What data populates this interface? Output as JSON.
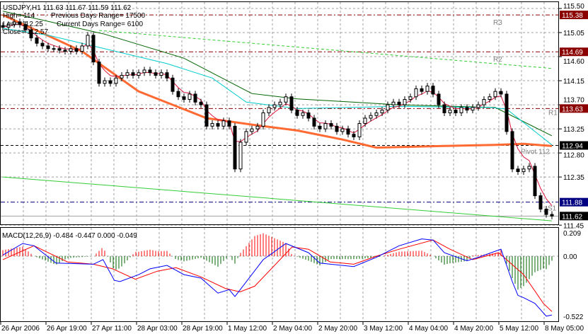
{
  "header": {
    "symbol_line": "USDJPY,H1  111.63 111.67 111.59 111.62",
    "high_line": "High= 114",
    "prev_range": "Previous Days Range= 17500",
    "low_line": "Low= 112.25",
    "cur_range": "Current Days Range= 6100",
    "close_line": "Close= 112.57"
  },
  "macd_label": "MACD(12,26,9) -0.484 -0.447 0.000 -0.049",
  "colors": {
    "bull_body": "#ffffff",
    "bear_body": "#000000",
    "fast_ma": "#dc143c",
    "cyan_ma": "#00cccc",
    "green_ma": "#006400",
    "orange_ma": "#ff6a33",
    "trend_dashed": "#32cd32",
    "trend_solid": "#32cd32",
    "resistance": "#8b0000",
    "pivot": "#000000",
    "support": "#000080",
    "macd": "#0000ff",
    "signal": "#ff0000",
    "hist_pos": "#ff0000",
    "hist_neg": "#006400",
    "grid": "#a0a0a0"
  },
  "chart_data": [
    {
      "type": "candlestick",
      "symbol": "USDJPY",
      "timeframe": "H1",
      "ylim": [
        111.45,
        115.5
      ],
      "y_ticks": [
        "115.50",
        "115.05",
        "114.60",
        "114.15",
        "113.70",
        "113.25",
        "112.80",
        "112.35",
        "111.45"
      ],
      "x_tick_labels": [
        "26 Apr 2006",
        "26 Apr 19:00",
        "27 Apr 11:00",
        "28 Apr 03:00",
        "28 Apr 19:00",
        "1 May 12:00",
        "2 May 04:00",
        "2 May 20:00",
        "3 May 12:00",
        "4 May 04:00",
        "4 May 20:00",
        "5 May 12:00",
        "8 May 05:00"
      ],
      "grid": true,
      "close": [
        115.15,
        115.2,
        115.25,
        115.2,
        115.1,
        114.95,
        114.85,
        114.8,
        114.75,
        114.75,
        114.72,
        114.7,
        114.75,
        114.7,
        114.8,
        115.0,
        114.5,
        114.1,
        114.15,
        114.1,
        114.2,
        114.25,
        114.3,
        114.25,
        114.3,
        114.35,
        114.3,
        114.25,
        114.3,
        114.2,
        113.95,
        113.85,
        113.8,
        113.9,
        113.75,
        113.7,
        113.3,
        113.35,
        113.3,
        113.4,
        113.3,
        112.5,
        113.0,
        113.2,
        113.25,
        113.3,
        113.55,
        113.65,
        113.7,
        113.75,
        113.85,
        113.6,
        113.5,
        113.55,
        113.45,
        113.3,
        113.25,
        113.35,
        113.3,
        113.2,
        113.25,
        113.15,
        113.1,
        113.35,
        113.45,
        113.5,
        113.55,
        113.6,
        113.7,
        113.75,
        113.7,
        113.8,
        113.85,
        114.0,
        113.95,
        114.05,
        113.9,
        113.7,
        113.55,
        113.6,
        113.55,
        113.65,
        113.6,
        113.65,
        113.7,
        113.8,
        113.85,
        113.95,
        113.9,
        113.2,
        112.5,
        112.45,
        112.5,
        112.55,
        112.0,
        111.75,
        111.65,
        111.62
      ],
      "moving_averages": {
        "cyan": [
          [
            0,
            115.13
          ],
          [
            8,
            115.0
          ],
          [
            29,
            114.47
          ],
          [
            37,
            114.2
          ],
          [
            43,
            113.75
          ],
          [
            52,
            113.63
          ],
          [
            70,
            113.67
          ],
          [
            86,
            113.65
          ],
          [
            89,
            113.62
          ],
          [
            97,
            112.95
          ]
        ],
        "green": [
          [
            0,
            115.45
          ],
          [
            18,
            115.02
          ],
          [
            32,
            114.57
          ],
          [
            44,
            113.91
          ],
          [
            52,
            113.81
          ],
          [
            70,
            113.7
          ],
          [
            87,
            113.65
          ],
          [
            97,
            113.12
          ]
        ],
        "orange": [
          [
            0,
            115.38
          ],
          [
            14,
            114.7
          ],
          [
            24,
            113.95
          ],
          [
            36,
            113.45
          ],
          [
            44,
            113.33
          ],
          [
            52,
            113.22
          ],
          [
            60,
            113.05
          ],
          [
            66,
            112.9
          ],
          [
            78,
            112.93
          ],
          [
            87,
            112.95
          ],
          [
            92,
            112.97
          ],
          [
            97,
            112.93
          ]
        ]
      },
      "trendlines": {
        "dashed": [
          [
            17,
            115.09
          ],
          [
            97,
            114.38
          ]
        ],
        "solid": [
          [
            0,
            112.35
          ],
          [
            97,
            111.53
          ]
        ]
      },
      "levels": [
        {
          "name": "R3",
          "value": "115.38",
          "kind": "resistance"
        },
        {
          "name": "R2",
          "value": "114.69",
          "kind": "resistance"
        },
        {
          "name": "R1",
          "value": "113.63",
          "kind": "resistance"
        },
        {
          "name": "Pivot  112",
          "value": "112.94",
          "kind": "pivot"
        },
        {
          "name": "S1",
          "value": "111.88",
          "kind": "support"
        },
        {
          "name": "",
          "value": "111.62",
          "kind": "current"
        }
      ]
    },
    {
      "type": "line",
      "title": "MACD(12,26,9) -0.484 -0.447 0.000 -0.049",
      "ylim": [
        -0.522,
        0.209
      ],
      "y_ticks": [
        "0.209",
        "0.00",
        "-0.522"
      ],
      "macd": [
        [
          0,
          0.01
        ],
        [
          3.5,
          0.11
        ],
        [
          5.5,
          0.09
        ],
        [
          9.4,
          -0.06
        ],
        [
          16,
          -0.07
        ],
        [
          17.7,
          -0.03
        ],
        [
          19.7,
          -0.21
        ],
        [
          20.7,
          -0.22
        ],
        [
          24,
          -0.16
        ],
        [
          26,
          -0.11
        ],
        [
          29,
          -0.08
        ],
        [
          32,
          -0.16
        ],
        [
          35,
          -0.19
        ],
        [
          38,
          -0.32
        ],
        [
          40,
          -0.29
        ],
        [
          41,
          -0.35
        ],
        [
          46,
          -0.03
        ],
        [
          50,
          0.11
        ],
        [
          54,
          0.03
        ],
        [
          56,
          -0.06
        ],
        [
          62,
          -0.09
        ],
        [
          66,
          -0.01
        ],
        [
          70,
          0.09
        ],
        [
          74,
          0.15
        ],
        [
          76,
          0.14
        ],
        [
          78,
          0.03
        ],
        [
          82,
          -0.04
        ],
        [
          84,
          -0.01
        ],
        [
          88,
          0.06
        ],
        [
          90,
          -0.22
        ],
        [
          91,
          -0.34
        ],
        [
          92,
          -0.36
        ],
        [
          94,
          -0.41
        ],
        [
          96,
          -0.52
        ],
        [
          97,
          -0.51
        ]
      ],
      "signal": [
        [
          0,
          -0.03
        ],
        [
          5.5,
          0.09
        ],
        [
          11.4,
          -0.05
        ],
        [
          16,
          -0.07
        ],
        [
          19.4,
          -0.11
        ],
        [
          23.4,
          -0.2
        ],
        [
          27.3,
          -0.13
        ],
        [
          30.6,
          -0.1
        ],
        [
          35,
          -0.18
        ],
        [
          39.3,
          -0.28
        ],
        [
          41.9,
          -0.31
        ],
        [
          44.5,
          -0.26
        ],
        [
          51.1,
          0.08
        ],
        [
          54,
          0.06
        ],
        [
          57.8,
          -0.05
        ],
        [
          62,
          -0.07
        ],
        [
          66,
          0
        ],
        [
          70,
          0.06
        ],
        [
          76,
          0.14
        ],
        [
          79,
          0.06
        ],
        [
          83,
          -0.03
        ],
        [
          87.6,
          0.03
        ],
        [
          92,
          -0.16
        ],
        [
          95.5,
          -0.41
        ],
        [
          97,
          -0.48
        ]
      ]
    }
  ]
}
